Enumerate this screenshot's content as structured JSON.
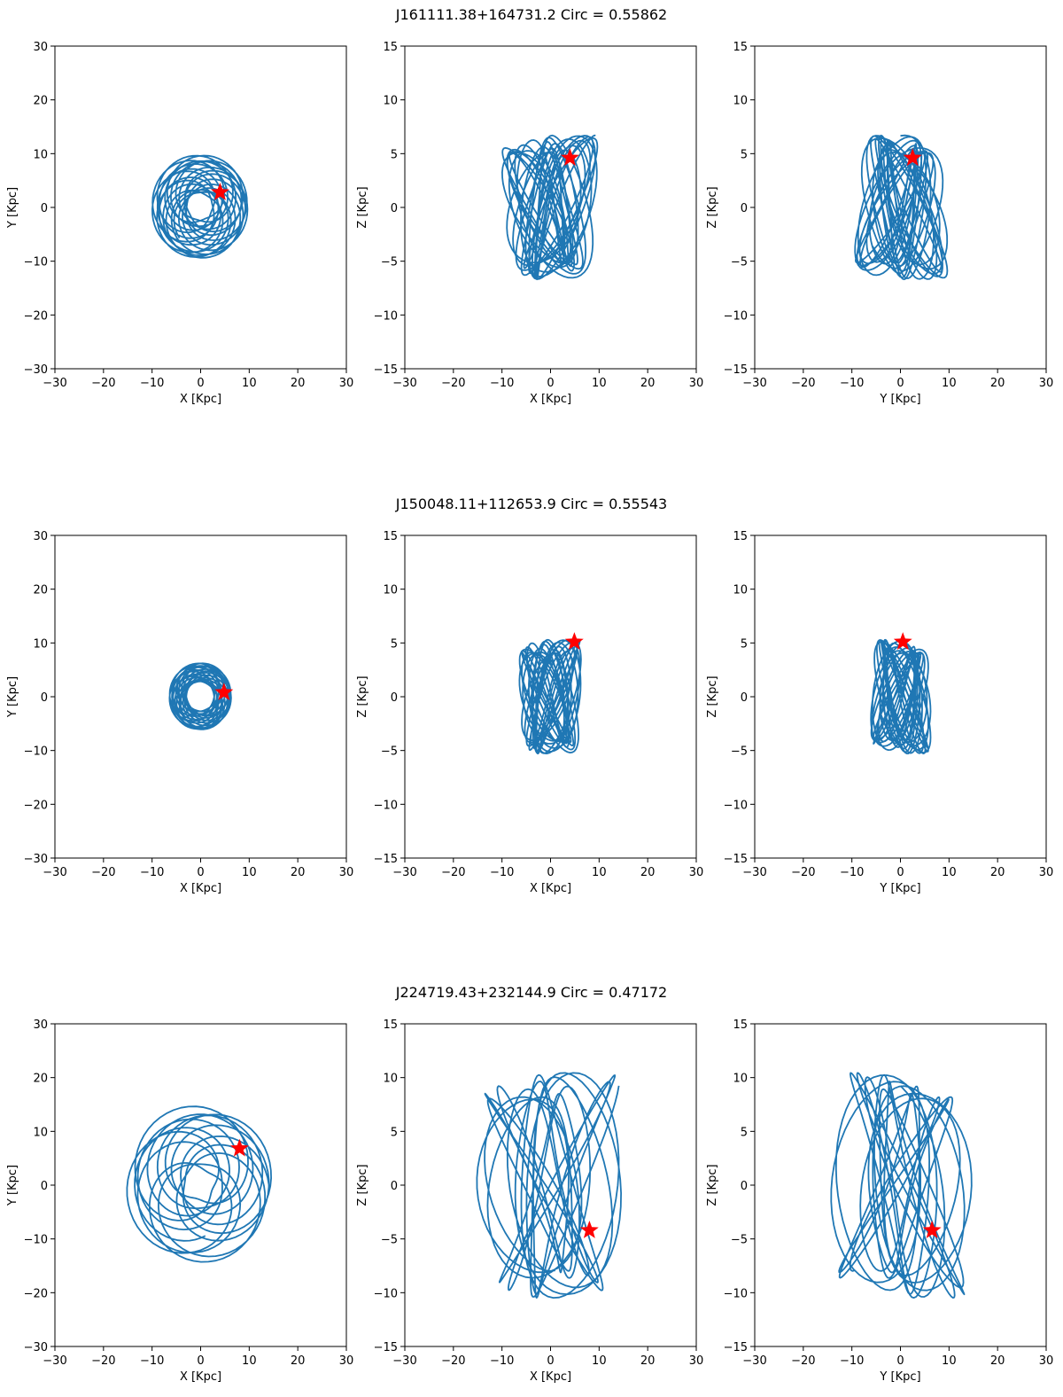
{
  "figure": {
    "layout": "3 rows x 3 panels"
  },
  "colors": {
    "orbit": "#1f77b4",
    "star": "#ff0000",
    "axes": "#000000"
  },
  "chart_data": [
    {
      "type": "line",
      "row_title": "J161111.38+164731.2    Circ = 0.55862",
      "orbit": {
        "apocenter_kpc": 9.5,
        "pericenter_kpc": 3.0,
        "zmax_kpc": 6.7,
        "lobes": 7,
        "loops": 18
      },
      "panels": [
        {
          "xlabel": "X [Kpc]",
          "ylabel": "Y [Kpc]",
          "xlim": [
            -30,
            30
          ],
          "ylim": [
            -30,
            30
          ],
          "xticks": [
            -30,
            -20,
            -10,
            0,
            10,
            20,
            30
          ],
          "yticks": [
            -30,
            -20,
            -10,
            0,
            10,
            20,
            30
          ],
          "star": [
            4.0,
            2.8
          ]
        },
        {
          "xlabel": "X [Kpc]",
          "ylabel": "Z [Kpc]",
          "xlim": [
            -30,
            30
          ],
          "ylim": [
            -15,
            15
          ],
          "xticks": [
            -30,
            -20,
            -10,
            0,
            10,
            20,
            30
          ],
          "yticks": [
            -15,
            -10,
            -5,
            0,
            5,
            10,
            15
          ],
          "star": [
            4.0,
            4.6
          ]
        },
        {
          "xlabel": "Y [Kpc]",
          "ylabel": "Z [Kpc]",
          "xlim": [
            -30,
            30
          ],
          "ylim": [
            -15,
            15
          ],
          "xticks": [
            -30,
            -20,
            -10,
            0,
            10,
            20,
            30
          ],
          "yticks": [
            -15,
            -10,
            -5,
            0,
            5,
            10,
            15
          ],
          "star": [
            2.5,
            4.6
          ]
        }
      ]
    },
    {
      "type": "line",
      "row_title": "J150048.11+112653.9    Circ = 0.55543",
      "orbit": {
        "apocenter_kpc": 6.2,
        "pericenter_kpc": 3.0,
        "zmax_kpc": 5.3,
        "lobes": 7,
        "loops": 18
      },
      "panels": [
        {
          "xlabel": "X [Kpc]",
          "ylabel": "Y [Kpc]",
          "xlim": [
            -30,
            30
          ],
          "ylim": [
            -30,
            30
          ],
          "xticks": [
            -30,
            -20,
            -10,
            0,
            10,
            20,
            30
          ],
          "yticks": [
            -30,
            -20,
            -10,
            0,
            10,
            20,
            30
          ],
          "star": [
            4.8,
            0.8
          ]
        },
        {
          "xlabel": "X [Kpc]",
          "ylabel": "Z [Kpc]",
          "xlim": [
            -30,
            30
          ],
          "ylim": [
            -15,
            15
          ],
          "xticks": [
            -30,
            -20,
            -10,
            0,
            10,
            20,
            30
          ],
          "yticks": [
            -15,
            -10,
            -5,
            0,
            5,
            10,
            15
          ],
          "star": [
            4.9,
            5.1
          ]
        },
        {
          "xlabel": "Y [Kpc]",
          "ylabel": "Z [Kpc]",
          "xlim": [
            -30,
            30
          ],
          "ylim": [
            -15,
            15
          ],
          "xticks": [
            -30,
            -20,
            -10,
            0,
            10,
            20,
            30
          ],
          "yticks": [
            -15,
            -10,
            -5,
            0,
            5,
            10,
            15
          ],
          "star": [
            0.5,
            5.1
          ]
        }
      ]
    },
    {
      "type": "line",
      "row_title": "J224719.43+232144.9    Circ = 0.47172",
      "orbit": {
        "apocenter_kpc": 14.5,
        "pericenter_kpc": 3.5,
        "zmax_kpc": 10.5,
        "lobes": 7,
        "loops": 12
      },
      "panels": [
        {
          "xlabel": "X [Kpc]",
          "ylabel": "Y [Kpc]",
          "xlim": [
            -30,
            30
          ],
          "ylim": [
            -30,
            30
          ],
          "xticks": [
            -30,
            -20,
            -10,
            0,
            10,
            20,
            30
          ],
          "yticks": [
            -30,
            -20,
            -10,
            0,
            10,
            20,
            30
          ],
          "star": [
            8.0,
            6.8
          ]
        },
        {
          "xlabel": "X [Kpc]",
          "ylabel": "Z [Kpc]",
          "xlim": [
            -30,
            30
          ],
          "ylim": [
            -15,
            15
          ],
          "xticks": [
            -30,
            -20,
            -10,
            0,
            10,
            20,
            30
          ],
          "yticks": [
            -15,
            -10,
            -5,
            0,
            5,
            10,
            15
          ],
          "star": [
            8.0,
            -4.2
          ]
        },
        {
          "xlabel": "Y [Kpc]",
          "ylabel": "Z [Kpc]",
          "xlim": [
            -30,
            30
          ],
          "ylim": [
            -15,
            15
          ],
          "xticks": [
            -30,
            -20,
            -10,
            0,
            10,
            20,
            30
          ],
          "yticks": [
            -15,
            -10,
            -5,
            0,
            5,
            10,
            15
          ],
          "star": [
            6.5,
            -4.2
          ]
        }
      ]
    }
  ]
}
